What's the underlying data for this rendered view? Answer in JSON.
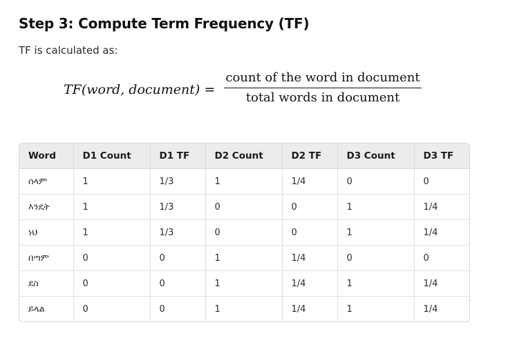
{
  "heading": "Step 3: Compute Term Frequency (TF)",
  "intro": "TF is calculated as:",
  "formula": {
    "lhs": "TF(word, document) =",
    "numerator": "count of the word in document",
    "denominator": "total words in document"
  },
  "table": {
    "columns": [
      "Word",
      "D1 Count",
      "D1 TF",
      "D2 Count",
      "D2 TF",
      "D3 Count",
      "D3 TF"
    ],
    "rows": [
      [
        "ሰላም",
        "1",
        "1/3",
        "1",
        "1/4",
        "0",
        "0"
      ],
      [
        "እንዴት",
        "1",
        "1/3",
        "0",
        "0",
        "1",
        "1/4"
      ],
      [
        "ነህ",
        "1",
        "1/3",
        "0",
        "0",
        "1",
        "1/4"
      ],
      [
        "በጣም",
        "0",
        "0",
        "1",
        "1/4",
        "0",
        "0"
      ],
      [
        "ደስ",
        "0",
        "0",
        "1",
        "1/4",
        "1",
        "1/4"
      ],
      [
        "ይላል",
        "0",
        "0",
        "1",
        "1/4",
        "1",
        "1/4"
      ]
    ]
  }
}
